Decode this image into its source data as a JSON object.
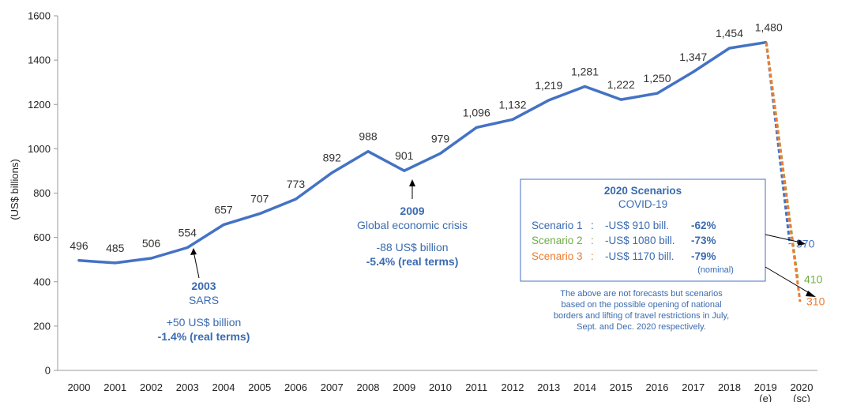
{
  "chart_data": {
    "type": "line",
    "ylabel": "(US$ billions)",
    "ylim": [
      0,
      1600
    ],
    "yticks": [
      "0",
      "200",
      "400",
      "600",
      "800",
      "1000",
      "1200",
      "1400",
      "1600"
    ],
    "x_tick_labels": [
      {
        "main": "2000",
        "sub": ""
      },
      {
        "main": "2001",
        "sub": ""
      },
      {
        "main": "2002",
        "sub": ""
      },
      {
        "main": "2003",
        "sub": ""
      },
      {
        "main": "2004",
        "sub": ""
      },
      {
        "main": "2005",
        "sub": ""
      },
      {
        "main": "2006",
        "sub": ""
      },
      {
        "main": "2007",
        "sub": ""
      },
      {
        "main": "2008",
        "sub": ""
      },
      {
        "main": "2009",
        "sub": ""
      },
      {
        "main": "2010",
        "sub": ""
      },
      {
        "main": "2011",
        "sub": ""
      },
      {
        "main": "2012",
        "sub": ""
      },
      {
        "main": "2013",
        "sub": ""
      },
      {
        "main": "2014",
        "sub": ""
      },
      {
        "main": "2015",
        "sub": ""
      },
      {
        "main": "2016",
        "sub": ""
      },
      {
        "main": "2017",
        "sub": ""
      },
      {
        "main": "2018",
        "sub": ""
      },
      {
        "main": "2019",
        "sub": "(e)"
      },
      {
        "main": "2020",
        "sub": "(sc)"
      }
    ],
    "series": [
      {
        "values": [
          496,
          485,
          506,
          554,
          657,
          707,
          773,
          892,
          988,
          901,
          979,
          1096,
          1132,
          1219,
          1281,
          1222,
          1250,
          1347,
          1454,
          1480
        ],
        "labels": [
          "496",
          "485",
          "506",
          "554",
          "657",
          "707",
          "773",
          "892",
          "988",
          "901",
          "979",
          "1,096",
          "1,132",
          "1,219",
          "1,281",
          "1,222",
          "1,250",
          "1,347",
          "1,454",
          "1,480"
        ],
        "color": "#4472c4"
      }
    ],
    "scenarios": [
      {
        "name": "Scenario 1",
        "value": 570,
        "label": "570",
        "color": "#4472c4",
        "text": "-US$  910 bill.",
        "pct": "-62%"
      },
      {
        "name": "Scenario 2",
        "value": 410,
        "label": "410",
        "color": "#70ad47",
        "text": "-US$ 1080 bill.",
        "pct": "-73%"
      },
      {
        "name": "Scenario 3",
        "value": 310,
        "label": "310",
        "color": "#ed7d31",
        "text": "-US$ 1170 bill.",
        "pct": "-79%"
      }
    ],
    "annotations": {
      "sars": {
        "year": "2003",
        "event": "SARS",
        "amount": "+50 US$ billion",
        "pct": "-1.4% (real terms)"
      },
      "crisis": {
        "year": "2009",
        "event": "Global economic crisis",
        "amount": "-88 US$ billion",
        "pct": "-5.4% (real terms)"
      }
    },
    "scenario_box": {
      "title": "2020 Scenarios",
      "subtitle": "COVID-19",
      "nominal": "(nominal)"
    },
    "note": [
      "The above are not forecasts but scenarios",
      "based on the possible opening of national",
      "borders and lifting of travel restrictions in July,",
      "Sept. and Dec. 2020 respectively."
    ]
  },
  "colors": {
    "series": "#4472c4",
    "annotation": "#3a6bb0",
    "axis": "#999999"
  }
}
